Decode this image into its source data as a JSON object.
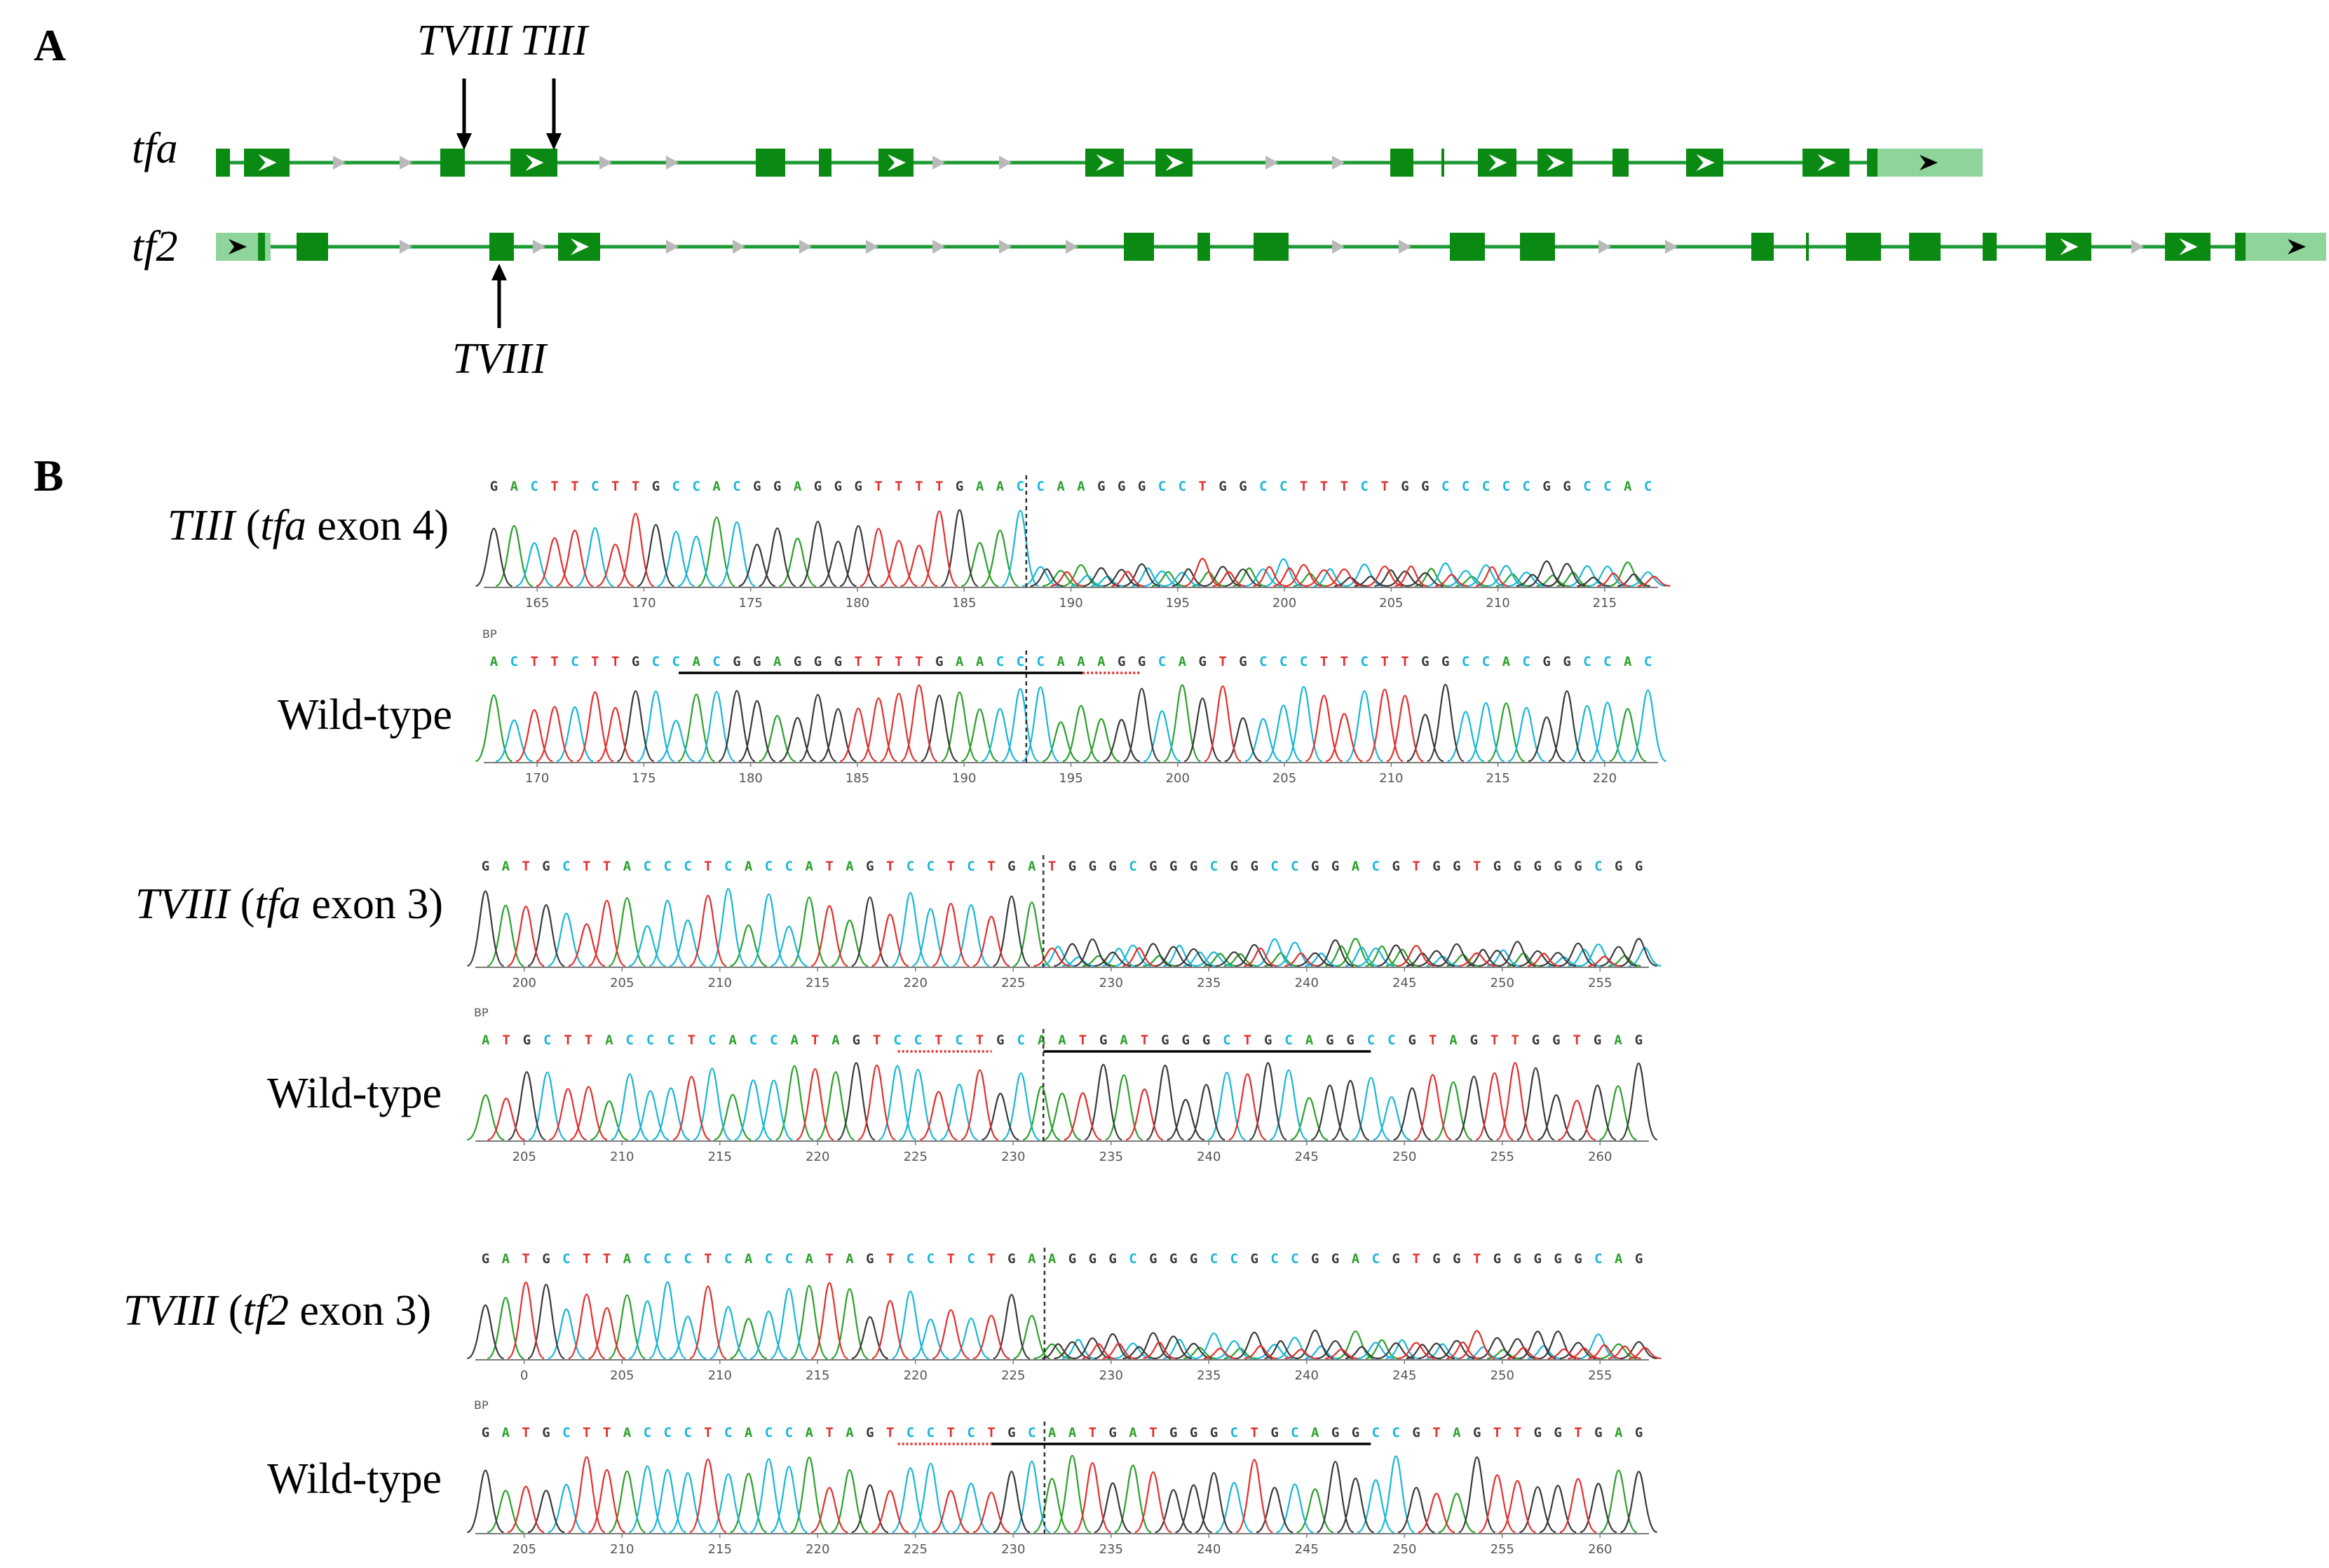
{
  "panel_a": {
    "label": "A",
    "genes": [
      {
        "name": "tfa",
        "exons": [
          [
            0,
            20,
            "box"
          ],
          [
            40,
            105,
            "arrow"
          ],
          [
            320,
            355,
            "box"
          ],
          [
            420,
            487,
            "arrow"
          ],
          [
            770,
            812,
            "box"
          ],
          [
            860,
            878,
            "box"
          ],
          [
            945,
            995,
            "arrow"
          ],
          [
            1240,
            1295,
            "arrow"
          ],
          [
            1340,
            1393,
            "arrow"
          ],
          [
            1675,
            1708,
            "box"
          ],
          [
            1748,
            1753,
            "tick"
          ],
          [
            1800,
            1855,
            "arrow"
          ],
          [
            1885,
            1935,
            "arrow"
          ],
          [
            1992,
            2015,
            "box"
          ],
          [
            2097,
            2150,
            "arrow"
          ],
          [
            2263,
            2330,
            "arrow"
          ],
          [
            2355,
            2370,
            "box"
          ]
        ],
        "utr_end": [
          2370,
          2520
        ]
      },
      {
        "name": "tf2",
        "exons": [
          [
            0,
            78,
            "utr-arrow"
          ],
          [
            60,
            70,
            "box"
          ],
          [
            115,
            160,
            "box"
          ],
          [
            390,
            425,
            "box"
          ],
          [
            488,
            548,
            "arrow"
          ],
          [
            1295,
            1338,
            "box"
          ],
          [
            1400,
            1418,
            "box"
          ],
          [
            1480,
            1530,
            "box"
          ],
          [
            1760,
            1810,
            "box"
          ],
          [
            1860,
            1910,
            "box"
          ],
          [
            2190,
            2222,
            "box"
          ],
          [
            2268,
            2272,
            "tick"
          ],
          [
            2325,
            2375,
            "box"
          ],
          [
            2415,
            2460,
            "box"
          ],
          [
            2520,
            2540,
            "box"
          ],
          [
            2610,
            2675,
            "arrow"
          ],
          [
            2780,
            2845,
            "arrow"
          ],
          [
            2880,
            2895,
            "box"
          ]
        ],
        "utr_end": [
          2895,
          3010
        ]
      }
    ],
    "markers": [
      {
        "label": "TVIII",
        "gene": "tfa",
        "direction": "down"
      },
      {
        "label": "TIII",
        "gene": "tfa",
        "direction": "down"
      },
      {
        "label": "TVIII",
        "gene": "tf2",
        "direction": "up"
      }
    ]
  },
  "panel_b": {
    "label": "B",
    "traces": [
      {
        "label_parts": [
          [
            "TIII",
            "i"
          ],
          [
            " (",
            "n"
          ],
          [
            "tfa",
            "i"
          ],
          [
            " exon 4)",
            "n"
          ]
        ],
        "bp_label": "",
        "sequence": "GACTTCTTGCCACGGAGGGTTTTGAACCAAGGGCCTGGCCTTTCTGGCCCCCGGCCAC",
        "ticks": [
          "165",
          "170",
          "175",
          "180",
          "185",
          "190",
          "195",
          "200",
          "205",
          "210",
          "215"
        ],
        "mutant": true
      },
      {
        "label_parts": [
          [
            "Wild-type",
            "n"
          ]
        ],
        "bp_label": "BP",
        "sequence": "ACTTCTTGCCACGGAGGGTTTTGAACCCAAAGGCAGTGCCCTTCTTGGCCACGGCCAC",
        "ticks": [
          "170",
          "175",
          "180",
          "185",
          "190",
          "195",
          "200",
          "205",
          "210",
          "215",
          "220"
        ],
        "mutant": false
      },
      {
        "label_parts": [
          [
            "TVIII",
            "i"
          ],
          [
            " (",
            "n"
          ],
          [
            "tfa",
            "i"
          ],
          [
            " exon 3)",
            "n"
          ]
        ],
        "bp_label": "",
        "sequence": "GATGCTTACCCTCACCATAGTCCTCTGATGGGCGGGCGGCCGGACGTGGTGGGGGCGG",
        "ticks": [
          "200",
          "205",
          "210",
          "215",
          "220",
          "225",
          "230",
          "235",
          "240",
          "245",
          "250",
          "255"
        ],
        "mutant": true
      },
      {
        "label_parts": [
          [
            "Wild-type",
            "n"
          ]
        ],
        "bp_label": "BP",
        "sequence": "ATGCTTACCCTCACCATAGTCCTCTGCAATGATGGGCTGCAGGCCGTAGTTGGTGAG",
        "ticks": [
          "205",
          "210",
          "215",
          "220",
          "225",
          "230",
          "235",
          "240",
          "245",
          "250",
          "255",
          "260"
        ],
        "mutant": false
      },
      {
        "label_parts": [
          [
            "TVIII",
            "i"
          ],
          [
            " (",
            "n"
          ],
          [
            "tf2",
            "i"
          ],
          [
            " exon 3)",
            "n"
          ]
        ],
        "bp_label": "",
        "sequence": "GATGCTTACCCTCACCATAGTCCTCTGAAGGGCGGGCCGCCGGACGTGGTGGGGGCAG",
        "ticks": [
          "0",
          "205",
          "210",
          "215",
          "220",
          "225",
          "230",
          "235",
          "240",
          "245",
          "250",
          "255"
        ],
        "mutant": true
      },
      {
        "label_parts": [
          [
            "Wild-type",
            "n"
          ]
        ],
        "bp_label": "BP",
        "sequence": "GATGCTTACCCTCACCATAGTCCTCTGCAATGATGGGCTGCAGGCCGTAGTTGGTGAG",
        "ticks": [
          "205",
          "210",
          "215",
          "220",
          "225",
          "230",
          "235",
          "240",
          "245",
          "250",
          "255",
          "260"
        ],
        "mutant": false
      }
    ]
  },
  "colors": {
    "gene_line": "#1e9a34",
    "exon": "#0a8a12",
    "utr": "#8fd49a",
    "intron_arrow": "#b9b9b9",
    "base_A": "#2ca02c",
    "base_C": "#19b6d8",
    "base_G": "#3a3a3a",
    "base_T": "#e2302d"
  }
}
